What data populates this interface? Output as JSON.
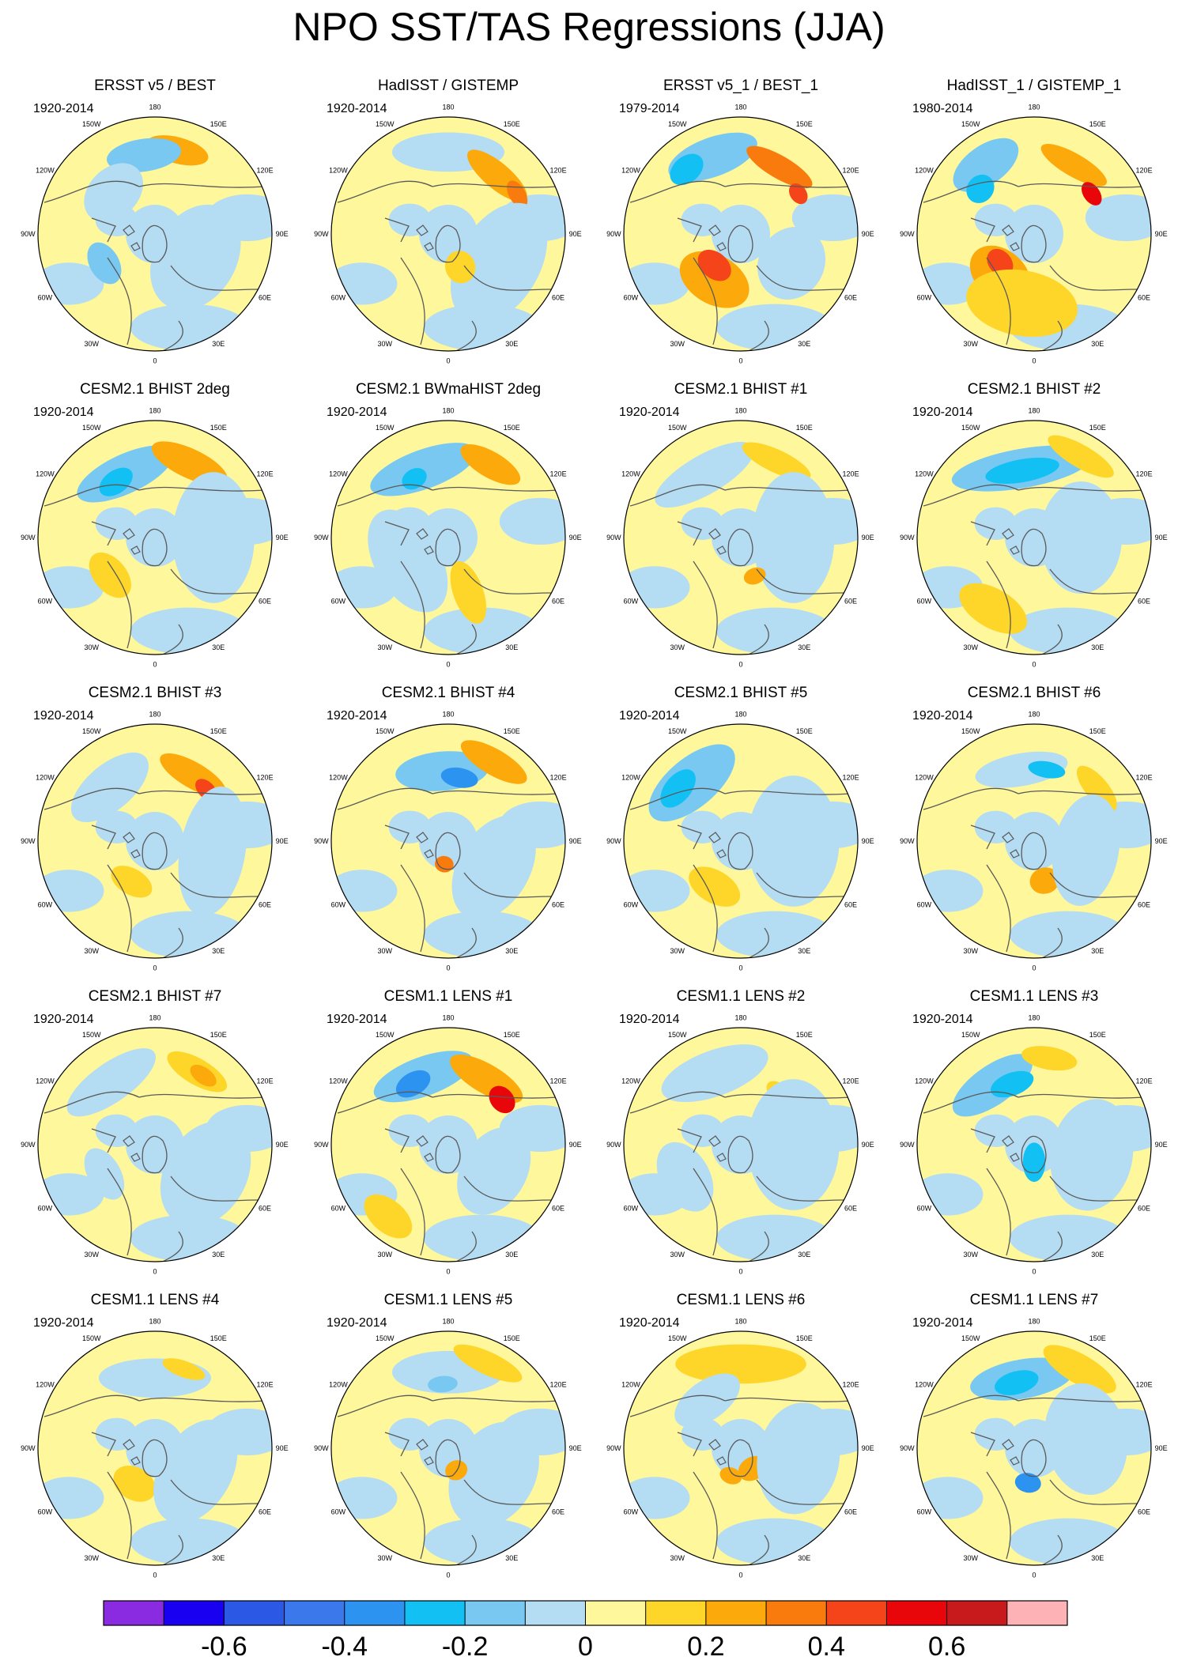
{
  "title": "NPO SST/TAS Regressions (JJA)",
  "palette": [
    "#8a2be2",
    "#1a00f0",
    "#2c58e6",
    "#3a78ec",
    "#2c93f0",
    "#12c0f4",
    "#78c8f2",
    "#b4dcf2",
    "#fef79c",
    "#fed62a",
    "#fba90b",
    "#f97a0d",
    "#f6441a",
    "#e8060a",
    "#c81a1d",
    "#fdb2b6"
  ],
  "colorbar": {
    "tick_labels": [
      "-0.6",
      "-0.4",
      "-0.2",
      "0",
      "0.2",
      "0.4",
      "0.6"
    ]
  },
  "longitude_labels": [
    "180",
    "150E",
    "120E",
    "90E",
    "60E",
    "30E",
    "0",
    "30W",
    "60W",
    "90W",
    "120W",
    "150W"
  ],
  "panels": [
    {
      "title": "ERSST v5 / BEST",
      "period": "1920-2014",
      "blobs": [
        {
          "lon": 165,
          "r": 0.74,
          "rx": 0.17,
          "ry": 0.08,
          "c": 10
        },
        {
          "lon": 188,
          "r": 0.68,
          "rx": 0.2,
          "ry": 0.1,
          "c": 6
        },
        {
          "lon": 225,
          "r": 0.5,
          "rx": 0.18,
          "ry": 0.15,
          "c": 7
        },
        {
          "lon": 60,
          "r": 0.4,
          "rx": 0.3,
          "ry": 0.25,
          "c": 7
        },
        {
          "lon": 300,
          "r": 0.5,
          "rx": 0.12,
          "ry": 0.09,
          "c": 6
        }
      ]
    },
    {
      "title": "HadISST / GISTEMP",
      "period": "1920-2014",
      "blobs": [
        {
          "lon": 180,
          "r": 0.7,
          "rx": 0.3,
          "ry": 0.12,
          "c": 7
        },
        {
          "lon": 140,
          "r": 0.65,
          "rx": 0.2,
          "ry": 0.08,
          "c": 10
        },
        {
          "lon": 120,
          "r": 0.68,
          "rx": 0.08,
          "ry": 0.05,
          "c": 11
        },
        {
          "lon": 60,
          "r": 0.5,
          "rx": 0.35,
          "ry": 0.25,
          "c": 7
        },
        {
          "lon": 20,
          "r": 0.3,
          "rx": 0.08,
          "ry": 0.1,
          "c": 9
        }
      ]
    },
    {
      "title": "ERSST v5_1 / BEST_1",
      "period": "1979-2014",
      "blobs": [
        {
          "lon": 200,
          "r": 0.7,
          "rx": 0.25,
          "ry": 0.12,
          "c": 6
        },
        {
          "lon": 220,
          "r": 0.72,
          "rx": 0.1,
          "ry": 0.08,
          "c": 5
        },
        {
          "lon": 150,
          "r": 0.66,
          "rx": 0.2,
          "ry": 0.07,
          "c": 11
        },
        {
          "lon": 125,
          "r": 0.6,
          "rx": 0.06,
          "ry": 0.05,
          "c": 12
        },
        {
          "lon": 330,
          "r": 0.45,
          "rx": 0.2,
          "ry": 0.15,
          "c": 10
        },
        {
          "lon": 320,
          "r": 0.35,
          "rx": 0.1,
          "ry": 0.08,
          "c": 12
        },
        {
          "lon": 60,
          "r": 0.5,
          "rx": 0.2,
          "ry": 0.2,
          "c": 7
        }
      ]
    },
    {
      "title": "HadISST_1 / GISTEMP_1",
      "period": "1980-2014",
      "blobs": [
        {
          "lon": 215,
          "r": 0.72,
          "rx": 0.2,
          "ry": 0.12,
          "c": 6
        },
        {
          "lon": 230,
          "r": 0.6,
          "rx": 0.08,
          "ry": 0.08,
          "c": 5
        },
        {
          "lon": 150,
          "r": 0.68,
          "rx": 0.2,
          "ry": 0.07,
          "c": 10
        },
        {
          "lon": 125,
          "r": 0.6,
          "rx": 0.07,
          "ry": 0.05,
          "c": 13
        },
        {
          "lon": 320,
          "r": 0.45,
          "rx": 0.18,
          "ry": 0.15,
          "c": 10
        },
        {
          "lon": 310,
          "r": 0.38,
          "rx": 0.08,
          "ry": 0.07,
          "c": 12
        },
        {
          "lon": 350,
          "r": 0.6,
          "rx": 0.3,
          "ry": 0.2,
          "c": 9
        }
      ]
    },
    {
      "title": "CESM2.1 BHIST 2deg",
      "period": "1920-2014",
      "blobs": [
        {
          "lon": 205,
          "r": 0.6,
          "rx": 0.28,
          "ry": 0.12,
          "c": 6
        },
        {
          "lon": 215,
          "r": 0.58,
          "rx": 0.1,
          "ry": 0.07,
          "c": 5
        },
        {
          "lon": 155,
          "r": 0.7,
          "rx": 0.22,
          "ry": 0.09,
          "c": 10
        },
        {
          "lon": 90,
          "r": 0.5,
          "rx": 0.35,
          "ry": 0.25,
          "c": 7
        },
        {
          "lon": 310,
          "r": 0.5,
          "rx": 0.14,
          "ry": 0.1,
          "c": 9
        }
      ]
    },
    {
      "title": "CESM2.1 BWmaHIST 2deg",
      "period": "1920-2014",
      "blobs": [
        {
          "lon": 200,
          "r": 0.62,
          "rx": 0.3,
          "ry": 0.12,
          "c": 6
        },
        {
          "lon": 210,
          "r": 0.58,
          "rx": 0.07,
          "ry": 0.06,
          "c": 5
        },
        {
          "lon": 150,
          "r": 0.72,
          "rx": 0.18,
          "ry": 0.08,
          "c": 10
        },
        {
          "lon": 300,
          "r": 0.4,
          "rx": 0.3,
          "ry": 0.2,
          "c": 7
        },
        {
          "lon": 20,
          "r": 0.5,
          "rx": 0.08,
          "ry": 0.2,
          "c": 9
        }
      ]
    },
    {
      "title": "CESM2.1 BHIST #1",
      "period": "1920-2014",
      "blobs": [
        {
          "lon": 210,
          "r": 0.62,
          "rx": 0.3,
          "ry": 0.12,
          "c": 7
        },
        {
          "lon": 155,
          "r": 0.72,
          "rx": 0.2,
          "ry": 0.07,
          "c": 9
        },
        {
          "lon": 90,
          "r": 0.45,
          "rx": 0.35,
          "ry": 0.25,
          "c": 7
        },
        {
          "lon": 20,
          "r": 0.35,
          "rx": 0.06,
          "ry": 0.05,
          "c": 10
        }
      ]
    },
    {
      "title": "CESM2.1 BHIST #2",
      "period": "1920-2014",
      "blobs": [
        {
          "lon": 190,
          "r": 0.6,
          "rx": 0.38,
          "ry": 0.12,
          "c": 6
        },
        {
          "lon": 190,
          "r": 0.58,
          "rx": 0.2,
          "ry": 0.07,
          "c": 5
        },
        {
          "lon": 150,
          "r": 0.8,
          "rx": 0.2,
          "ry": 0.07,
          "c": 9
        },
        {
          "lon": 330,
          "r": 0.7,
          "rx": 0.2,
          "ry": 0.12,
          "c": 9
        },
        {
          "lon": 90,
          "r": 0.4,
          "rx": 0.3,
          "ry": 0.25,
          "c": 7
        }
      ]
    },
    {
      "title": "CESM2.1 BHIST #3",
      "period": "1920-2014",
      "blobs": [
        {
          "lon": 220,
          "r": 0.6,
          "rx": 0.25,
          "ry": 0.14,
          "c": 7
        },
        {
          "lon": 150,
          "r": 0.65,
          "rx": 0.2,
          "ry": 0.08,
          "c": 10
        },
        {
          "lon": 135,
          "r": 0.62,
          "rx": 0.07,
          "ry": 0.05,
          "c": 12
        },
        {
          "lon": 80,
          "r": 0.5,
          "rx": 0.35,
          "ry": 0.2,
          "c": 7
        },
        {
          "lon": 330,
          "r": 0.4,
          "rx": 0.12,
          "ry": 0.08,
          "c": 9
        }
      ]
    },
    {
      "title": "CESM2.1 BHIST #4",
      "period": "1920-2014",
      "blobs": [
        {
          "lon": 185,
          "r": 0.6,
          "rx": 0.25,
          "ry": 0.12,
          "c": 6
        },
        {
          "lon": 170,
          "r": 0.55,
          "rx": 0.1,
          "ry": 0.06,
          "c": 4
        },
        {
          "lon": 150,
          "r": 0.78,
          "rx": 0.2,
          "ry": 0.08,
          "c": 10
        },
        {
          "lon": 60,
          "r": 0.45,
          "rx": 0.3,
          "ry": 0.22,
          "c": 7
        },
        {
          "lon": 350,
          "r": 0.2,
          "rx": 0.05,
          "ry": 0.05,
          "c": 11
        }
      ]
    },
    {
      "title": "CESM2.1 BHIST #5",
      "period": "1920-2014",
      "blobs": [
        {
          "lon": 220,
          "r": 0.65,
          "rx": 0.28,
          "ry": 0.15,
          "c": 6
        },
        {
          "lon": 230,
          "r": 0.7,
          "rx": 0.12,
          "ry": 0.08,
          "c": 5
        },
        {
          "lon": 90,
          "r": 0.45,
          "rx": 0.35,
          "ry": 0.28,
          "c": 7
        },
        {
          "lon": 330,
          "r": 0.45,
          "rx": 0.15,
          "ry": 0.1,
          "c": 9
        }
      ]
    },
    {
      "title": "CESM2.1 BHIST #6",
      "period": "1920-2014",
      "blobs": [
        {
          "lon": 190,
          "r": 0.62,
          "rx": 0.25,
          "ry": 0.1,
          "c": 7
        },
        {
          "lon": 170,
          "r": 0.62,
          "rx": 0.1,
          "ry": 0.05,
          "c": 5
        },
        {
          "lon": 130,
          "r": 0.7,
          "rx": 0.15,
          "ry": 0.07,
          "c": 9
        },
        {
          "lon": 15,
          "r": 0.35,
          "rx": 0.08,
          "ry": 0.08,
          "c": 10
        },
        {
          "lon": 80,
          "r": 0.45,
          "rx": 0.3,
          "ry": 0.2,
          "c": 7
        }
      ]
    },
    {
      "title": "CESM2.1 BHIST #7",
      "period": "1920-2014",
      "blobs": [
        {
          "lon": 215,
          "r": 0.65,
          "rx": 0.28,
          "ry": 0.12,
          "c": 7
        },
        {
          "lon": 150,
          "r": 0.72,
          "rx": 0.18,
          "ry": 0.08,
          "c": 9
        },
        {
          "lon": 145,
          "r": 0.72,
          "rx": 0.08,
          "ry": 0.05,
          "c": 10
        },
        {
          "lon": 60,
          "r": 0.5,
          "rx": 0.3,
          "ry": 0.25,
          "c": 7
        },
        {
          "lon": 300,
          "r": 0.5,
          "rx": 0.15,
          "ry": 0.1,
          "c": 7
        }
      ]
    },
    {
      "title": "CESM1.1 LENS #1",
      "period": "1920-2014",
      "blobs": [
        {
          "lon": 200,
          "r": 0.62,
          "rx": 0.28,
          "ry": 0.12,
          "c": 6
        },
        {
          "lon": 210,
          "r": 0.6,
          "rx": 0.1,
          "ry": 0.07,
          "c": 4
        },
        {
          "lon": 150,
          "r": 0.65,
          "rx": 0.22,
          "ry": 0.09,
          "c": 10
        },
        {
          "lon": 130,
          "r": 0.6,
          "rx": 0.08,
          "ry": 0.07,
          "c": 13
        },
        {
          "lon": 320,
          "r": 0.8,
          "rx": 0.15,
          "ry": 0.1,
          "c": 9
        },
        {
          "lon": 60,
          "r": 0.45,
          "rx": 0.25,
          "ry": 0.2,
          "c": 7
        }
      ]
    },
    {
      "title": "CESM1.1 LENS #2",
      "period": "1920-2014",
      "blobs": [
        {
          "lon": 200,
          "r": 0.65,
          "rx": 0.3,
          "ry": 0.14,
          "c": 7
        },
        {
          "lon": 140,
          "r": 0.55,
          "rx": 0.1,
          "ry": 0.06,
          "c": 9
        },
        {
          "lon": 130,
          "r": 0.55,
          "rx": 0.05,
          "ry": 0.04,
          "c": 11
        },
        {
          "lon": 90,
          "r": 0.45,
          "rx": 0.35,
          "ry": 0.28,
          "c": 7
        },
        {
          "lon": 300,
          "r": 0.55,
          "rx": 0.2,
          "ry": 0.15,
          "c": 7
        }
      ]
    },
    {
      "title": "CESM1.1 LENS #3",
      "period": "1920-2014",
      "blobs": [
        {
          "lon": 215,
          "r": 0.62,
          "rx": 0.25,
          "ry": 0.12,
          "c": 6
        },
        {
          "lon": 200,
          "r": 0.55,
          "rx": 0.12,
          "ry": 0.07,
          "c": 5
        },
        {
          "lon": 170,
          "r": 0.75,
          "rx": 0.15,
          "ry": 0.07,
          "c": 9
        },
        {
          "lon": 80,
          "r": 0.5,
          "rx": 0.3,
          "ry": 0.25,
          "c": 7
        },
        {
          "lon": 0,
          "r": 0.15,
          "rx": 0.06,
          "ry": 0.12,
          "c": 5
        }
      ]
    },
    {
      "title": "CESM1.1 LENS #4",
      "period": "1920-2014",
      "blobs": [
        {
          "lon": 180,
          "r": 0.6,
          "rx": 0.3,
          "ry": 0.12,
          "c": 7
        },
        {
          "lon": 160,
          "r": 0.72,
          "rx": 0.12,
          "ry": 0.05,
          "c": 9
        },
        {
          "lon": 330,
          "r": 0.35,
          "rx": 0.12,
          "ry": 0.1,
          "c": 9
        },
        {
          "lon": 60,
          "r": 0.4,
          "rx": 0.3,
          "ry": 0.22,
          "c": 7
        }
      ]
    },
    {
      "title": "CESM1.1 LENS #5",
      "period": "1920-2014",
      "blobs": [
        {
          "lon": 180,
          "r": 0.65,
          "rx": 0.3,
          "ry": 0.13,
          "c": 7
        },
        {
          "lon": 185,
          "r": 0.55,
          "rx": 0.08,
          "ry": 0.05,
          "c": 6
        },
        {
          "lon": 155,
          "r": 0.8,
          "rx": 0.2,
          "ry": 0.07,
          "c": 9
        },
        {
          "lon": 60,
          "r": 0.45,
          "rx": 0.3,
          "ry": 0.25,
          "c": 7
        },
        {
          "lon": 20,
          "r": 0.2,
          "rx": 0.06,
          "ry": 0.06,
          "c": 10
        }
      ]
    },
    {
      "title": "CESM1.1 LENS #6",
      "period": "1920-2014",
      "blobs": [
        {
          "lon": 180,
          "r": 0.72,
          "rx": 0.35,
          "ry": 0.12,
          "c": 9
        },
        {
          "lon": 215,
          "r": 0.5,
          "rx": 0.2,
          "ry": 0.12,
          "c": 7
        },
        {
          "lon": 30,
          "r": 0.2,
          "rx": 0.08,
          "ry": 0.07,
          "c": 10
        },
        {
          "lon": 340,
          "r": 0.25,
          "rx": 0.06,
          "ry": 0.05,
          "c": 10
        },
        {
          "lon": 80,
          "r": 0.5,
          "rx": 0.3,
          "ry": 0.25,
          "c": 7
        }
      ]
    },
    {
      "title": "CESM1.1 LENS #7",
      "period": "1920-2014",
      "blobs": [
        {
          "lon": 190,
          "r": 0.6,
          "rx": 0.28,
          "ry": 0.12,
          "c": 6
        },
        {
          "lon": 195,
          "r": 0.58,
          "rx": 0.12,
          "ry": 0.07,
          "c": 5
        },
        {
          "lon": 150,
          "r": 0.78,
          "rx": 0.22,
          "ry": 0.09,
          "c": 9
        },
        {
          "lon": 350,
          "r": 0.3,
          "rx": 0.07,
          "ry": 0.06,
          "c": 4
        },
        {
          "lon": 100,
          "r": 0.45,
          "rx": 0.3,
          "ry": 0.25,
          "c": 7
        }
      ]
    }
  ]
}
